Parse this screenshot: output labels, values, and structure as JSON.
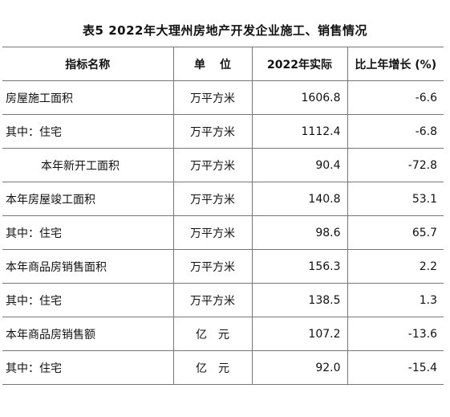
{
  "title": "表5   2022年大理州房地产开发企业施工、销售情况",
  "header": {
    "col1": "指标名称",
    "col2": "单位",
    "col3": "2022年实际",
    "col4": "比上年增长 (%)"
  },
  "rows": [
    {
      "name": "房屋施工面积",
      "unit": "万平方米",
      "actual": "1606.8",
      "growth": "-6.6"
    },
    {
      "name": "其中：住宅",
      "unit": "万平方米",
      "actual": "1112.4",
      "growth": "-6.8"
    },
    {
      "name": "本年新开工面积",
      "unit": "万平方米",
      "actual": "90.4",
      "growth": "-72.8"
    },
    {
      "name": "本年房屋竣工面积",
      "unit": "万平方米",
      "actual": "140.8",
      "growth": "53.1"
    },
    {
      "name": "其中：住宅",
      "unit": "万平方米",
      "actual": "98.6",
      "growth": "65.7"
    },
    {
      "name": "本年商品房销售面积",
      "unit": "万平方米",
      "actual": "156.3",
      "growth": "2.2"
    },
    {
      "name": "其中：住宅",
      "unit": "万平方米",
      "actual": "138.5",
      "growth": "1.3"
    },
    {
      "name": "本年商品房销售额",
      "unit": "亿元",
      "actual": "107.2",
      "growth": "-13.6"
    },
    {
      "name": "其中：住宅",
      "unit": "亿元",
      "actual": "92.0",
      "growth": "-15.4"
    }
  ]
}
